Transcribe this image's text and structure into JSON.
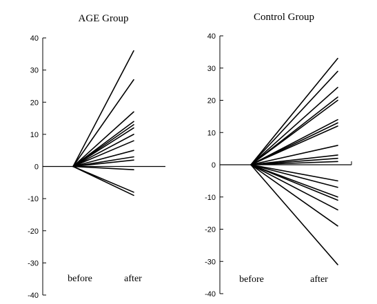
{
  "chart_data": [
    {
      "type": "line",
      "title": "AGE Group",
      "categories": [
        "before",
        "after"
      ],
      "ylim": [
        -40,
        40
      ],
      "yticks": [
        "40",
        "30",
        "20",
        "10",
        "0",
        "-10",
        "-20",
        "-30",
        "-40"
      ],
      "grid": false,
      "baseline": 0,
      "series": [
        {
          "values": [
            0,
            36
          ]
        },
        {
          "values": [
            0,
            27
          ]
        },
        {
          "values": [
            0,
            17
          ]
        },
        {
          "values": [
            0,
            14
          ]
        },
        {
          "values": [
            0,
            13
          ]
        },
        {
          "values": [
            0,
            12
          ]
        },
        {
          "values": [
            0,
            10
          ]
        },
        {
          "values": [
            0,
            8
          ]
        },
        {
          "values": [
            0,
            5
          ]
        },
        {
          "values": [
            0,
            3
          ]
        },
        {
          "values": [
            0,
            2
          ]
        },
        {
          "values": [
            0,
            -1
          ]
        },
        {
          "values": [
            0,
            -8
          ]
        },
        {
          "values": [
            0,
            -9
          ]
        }
      ]
    },
    {
      "type": "line",
      "title": "Control Group",
      "categories": [
        "before",
        "after"
      ],
      "ylim": [
        -40,
        40
      ],
      "yticks": [
        "40",
        "30",
        "20",
        "10",
        "0",
        "-10",
        "-20",
        "-30",
        "-40"
      ],
      "grid": false,
      "baseline": 0,
      "series": [
        {
          "values": [
            0,
            33
          ]
        },
        {
          "values": [
            0,
            29
          ]
        },
        {
          "values": [
            0,
            24
          ]
        },
        {
          "values": [
            0,
            21
          ]
        },
        {
          "values": [
            0,
            20
          ]
        },
        {
          "values": [
            0,
            14
          ]
        },
        {
          "values": [
            0,
            13
          ]
        },
        {
          "values": [
            0,
            12
          ]
        },
        {
          "values": [
            0,
            6
          ]
        },
        {
          "values": [
            0,
            3
          ]
        },
        {
          "values": [
            0,
            2
          ]
        },
        {
          "values": [
            0,
            1
          ]
        },
        {
          "values": [
            0,
            -5
          ]
        },
        {
          "values": [
            0,
            -7
          ]
        },
        {
          "values": [
            0,
            -10
          ]
        },
        {
          "values": [
            0,
            -11
          ]
        },
        {
          "values": [
            0,
            -14
          ]
        },
        {
          "values": [
            0,
            -19
          ]
        },
        {
          "values": [
            0,
            -31
          ]
        }
      ]
    }
  ]
}
